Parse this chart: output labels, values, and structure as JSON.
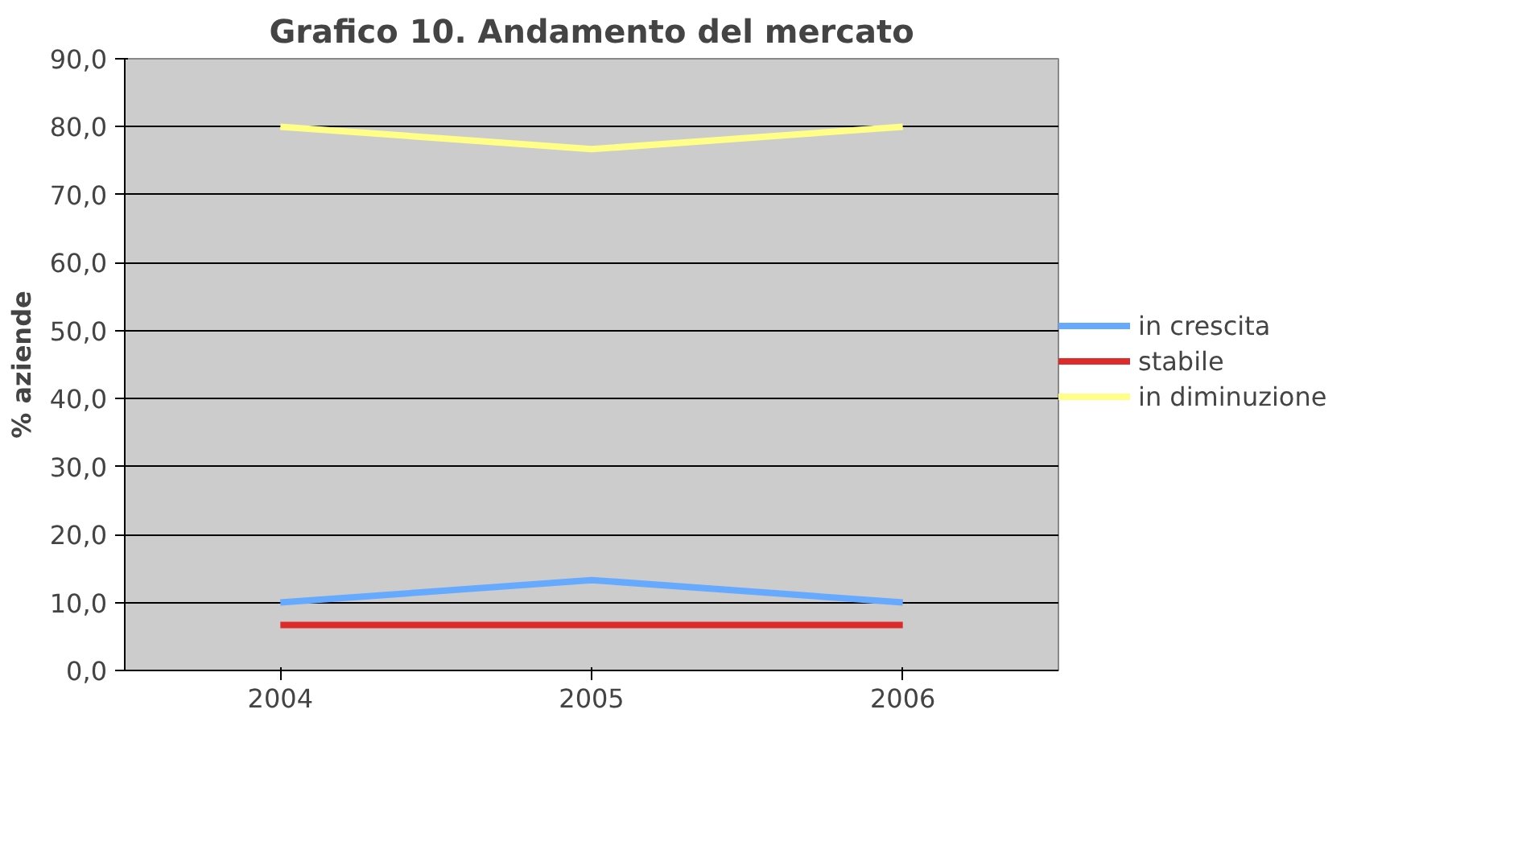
{
  "chart_data": {
    "type": "line",
    "title": "Grafico 10. Andamento del mercato",
    "ylabel": "% aziende",
    "categories": [
      "2004",
      "2005",
      "2006"
    ],
    "series": [
      {
        "name": "in crescita",
        "color": "#66aaff",
        "values": [
          10.0,
          13.3,
          10.0
        ]
      },
      {
        "name": "stabile",
        "color": "#dd2a2a",
        "values": [
          6.7,
          6.7,
          6.7
        ]
      },
      {
        "name": "in diminuzione",
        "color": "#ffff88",
        "values": [
          80.0,
          76.7,
          80.0
        ]
      }
    ],
    "ylim": [
      0,
      90
    ],
    "yticks": [
      {
        "value": 0,
        "label": "0,0"
      },
      {
        "value": 10,
        "label": "10,0"
      },
      {
        "value": 20,
        "label": "20,0"
      },
      {
        "value": 30,
        "label": "30,0"
      },
      {
        "value": 40,
        "label": "40,0"
      },
      {
        "value": 50,
        "label": "50,0"
      },
      {
        "value": 60,
        "label": "60,0"
      },
      {
        "value": 70,
        "label": "70,0"
      },
      {
        "value": 80,
        "label": "80,0"
      },
      {
        "value": 90,
        "label": "90,0"
      }
    ],
    "grid": "y",
    "legend": "right",
    "marker": "none",
    "line_style": "solid"
  }
}
